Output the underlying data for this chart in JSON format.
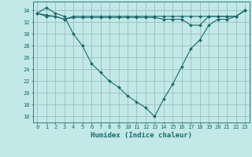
{
  "xlabel": "Humidex (Indice chaleur)",
  "bg_color": "#c2e8e8",
  "grid_color": "#9bbfbf",
  "line_color": "#1a6b6b",
  "line1": [
    33.5,
    34.5,
    33.5,
    33.0,
    30.0,
    28.0,
    25.0,
    23.5,
    22.0,
    21.0,
    19.5,
    18.5,
    17.5,
    16.0,
    19.0,
    21.5,
    24.5,
    27.5,
    29.0,
    31.5,
    32.5,
    32.5,
    33.0,
    34.0
  ],
  "line2": [
    33.5,
    33.0,
    33.0,
    32.5,
    33.0,
    33.0,
    33.0,
    33.0,
    33.0,
    33.0,
    33.0,
    33.0,
    33.0,
    33.0,
    33.0,
    33.0,
    33.0,
    33.0,
    33.0,
    33.0,
    33.0,
    33.0,
    33.0,
    34.0
  ],
  "line3": [
    33.5,
    33.2,
    33.0,
    32.5,
    32.8,
    32.8,
    32.8,
    32.8,
    32.8,
    32.8,
    32.8,
    32.8,
    32.8,
    32.8,
    32.5,
    32.5,
    32.5,
    31.5,
    31.5,
    33.0,
    33.0,
    33.0,
    33.0,
    34.0
  ],
  "xlim": [
    -0.5,
    23.5
  ],
  "ylim": [
    15.0,
    35.5
  ],
  "yticks": [
    16,
    18,
    20,
    22,
    24,
    26,
    28,
    30,
    32,
    34
  ],
  "xticks": [
    0,
    1,
    2,
    3,
    4,
    5,
    6,
    7,
    8,
    9,
    10,
    11,
    12,
    13,
    14,
    15,
    16,
    17,
    18,
    19,
    20,
    21,
    22,
    23
  ],
  "xlabel_fontsize": 6.5,
  "tick_fontsize": 5.0
}
